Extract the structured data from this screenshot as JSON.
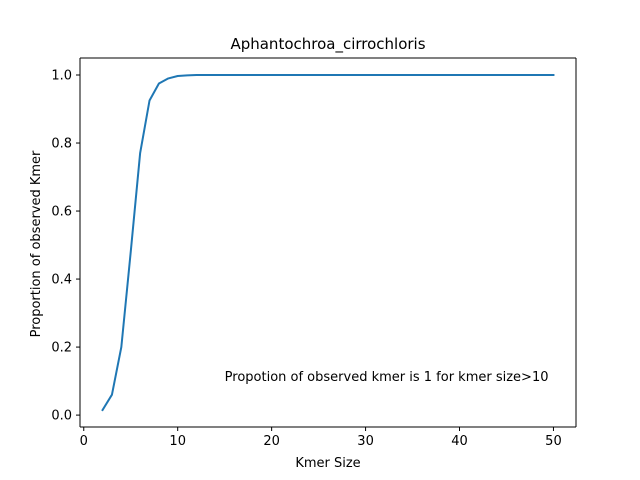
{
  "chart_data": {
    "type": "line",
    "title": "Aphantochroa_cirrochloris",
    "xlabel": "Kmer Size",
    "ylabel": "Proportion of observed Kmer",
    "xlim": [
      -0.4,
      52.4
    ],
    "ylim": [
      -0.035,
      1.05
    ],
    "xticks": [
      0,
      10,
      20,
      30,
      40,
      50
    ],
    "yticks": [
      0.0,
      0.2,
      0.4,
      0.6,
      0.8,
      1.0
    ],
    "xtick_labels": [
      "0",
      "10",
      "20",
      "30",
      "40",
      "50"
    ],
    "ytick_labels": [
      "0.0",
      "0.2",
      "0.4",
      "0.6",
      "0.8",
      "1.0"
    ],
    "grid": false,
    "series": [
      {
        "color": "#1f77b4",
        "x": [
          2,
          3,
          4,
          5,
          6,
          7,
          8,
          9,
          10,
          11,
          12,
          13,
          14,
          15,
          16,
          17,
          18,
          19,
          20,
          21,
          22,
          23,
          24,
          25,
          26,
          27,
          28,
          29,
          30,
          31,
          32,
          33,
          34,
          35,
          36,
          37,
          38,
          39,
          40,
          41,
          42,
          43,
          44,
          45,
          46,
          47,
          48,
          49,
          50
        ],
        "y": [
          0.015,
          0.06,
          0.2,
          0.48,
          0.77,
          0.925,
          0.975,
          0.99,
          0.997,
          0.999,
          1.0,
          1.0,
          1.0,
          1.0,
          1.0,
          1.0,
          1.0,
          1.0,
          1.0,
          1.0,
          1.0,
          1.0,
          1.0,
          1.0,
          1.0,
          1.0,
          1.0,
          1.0,
          1.0,
          1.0,
          1.0,
          1.0,
          1.0,
          1.0,
          1.0,
          1.0,
          1.0,
          1.0,
          1.0,
          1.0,
          1.0,
          1.0,
          1.0,
          1.0,
          1.0,
          1.0,
          1.0,
          1.0,
          1.0
        ]
      }
    ],
    "annotations": [
      {
        "text": "Propotion of observed kmer is 1 for kmer size>10",
        "x": 15,
        "y": 0.1
      }
    ]
  }
}
